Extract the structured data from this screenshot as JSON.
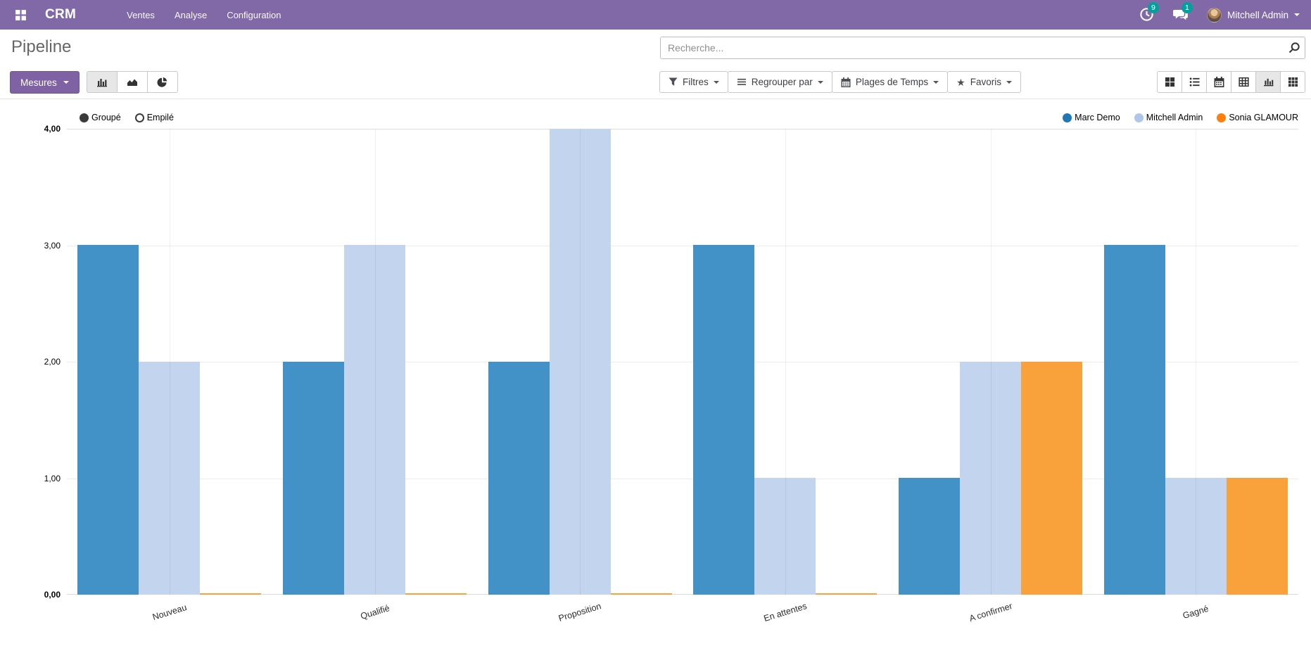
{
  "navbar": {
    "brand": "CRM",
    "menus": [
      "Ventes",
      "Analyse",
      "Configuration"
    ],
    "activity_badge": "9",
    "message_badge": "1",
    "user_name": "Mitchell Admin",
    "bar_color": "#8169a8",
    "badge_color": "#00a09d"
  },
  "control_panel": {
    "title": "Pipeline",
    "search_placeholder": "Recherche...",
    "measures_label": "Mesures",
    "measures_color": "#7e62a3",
    "chart_type_buttons": [
      {
        "icon": "bar-chart-icon",
        "active": true
      },
      {
        "icon": "area-chart-icon",
        "active": false
      },
      {
        "icon": "pie-chart-icon",
        "active": false
      }
    ],
    "filter_buttons": {
      "filters": "Filtres",
      "group_by": "Regrouper par",
      "time_ranges": "Plages de Temps",
      "favorites": "Favoris"
    },
    "view_switcher": [
      "kanban",
      "list",
      "calendar",
      "pivot",
      "graph",
      "activity"
    ],
    "active_view": "graph"
  },
  "chart_controls": {
    "grouped_label": "Groupé",
    "stacked_label": "Empilé",
    "mode": "grouped"
  },
  "chart_data": {
    "type": "bar",
    "title": "",
    "categories": [
      "Nouveau",
      "Qualifié",
      "Proposition",
      "En attentes",
      "A confirmer",
      "Gagné"
    ],
    "series": [
      {
        "name": "Marc Demo",
        "color": "#1f77b4",
        "bar_color": "#4292c7",
        "values": [
          3,
          2,
          2,
          3,
          1,
          3
        ]
      },
      {
        "name": "Mitchell Admin",
        "color": "#aec7e8",
        "bar_color": "#c3d4ee",
        "values": [
          2,
          3,
          4,
          1,
          2,
          1
        ]
      },
      {
        "name": "Sonia GLAMOUR",
        "color": "#ff7f0e",
        "bar_color": "#f9a23c",
        "values": [
          0,
          0,
          0,
          0,
          2,
          1
        ]
      }
    ],
    "ylim": [
      0,
      4
    ],
    "yticks": [
      0,
      1,
      2,
      3,
      4
    ],
    "ytick_labels": [
      "0,00",
      "1,00",
      "2,00",
      "3,00",
      "4,00"
    ],
    "xlabel": "",
    "ylabel": "",
    "grid": true,
    "legend_position": "top-right"
  }
}
